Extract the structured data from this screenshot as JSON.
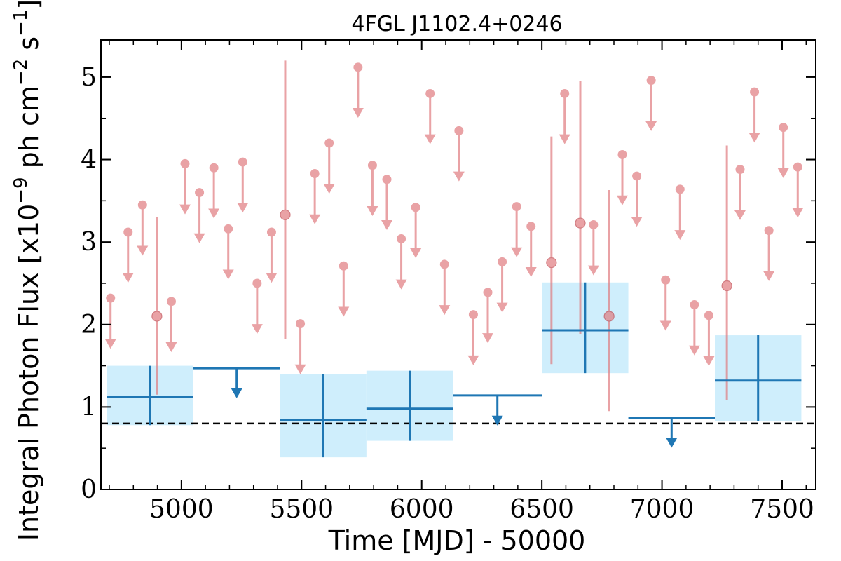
{
  "chart_data": {
    "type": "scatter",
    "title": "4FGL J1102.4+0246",
    "xlabel": "Time [MJD] - 50000",
    "ylabel": "Integral Photon Flux [x10",
    "ylabel_exp1": "−9",
    "ylabel_mid": " ph cm",
    "ylabel_exp2": "−2",
    "ylabel_mid2": " s",
    "ylabel_exp3": "−1",
    "ylabel_end": "]",
    "xlim": [
      4665,
      7640
    ],
    "ylim": [
      0,
      5.45
    ],
    "xticks": [
      5000,
      5500,
      6000,
      6500,
      7000,
      7500
    ],
    "yticks": [
      0,
      1,
      2,
      3,
      4,
      5
    ],
    "reference_line": {
      "y": 0.8,
      "style": "dashed",
      "color": "#000000"
    },
    "series": [
      {
        "marker": "circle-with-error",
        "color": "#e07b80",
        "points": [
          {
            "x": 4898,
            "y": 2.1,
            "ylo": 1.15,
            "yhi": 3.3
          },
          {
            "x": 5432,
            "y": 3.33,
            "ylo": 1.82,
            "yhi": 5.2
          },
          {
            "x": 6540,
            "y": 2.75,
            "ylo": 1.52,
            "yhi": 4.28
          },
          {
            "x": 6660,
            "y": 3.23,
            "ylo": 1.88,
            "yhi": 4.95
          },
          {
            "x": 6780,
            "y": 2.1,
            "ylo": 0.95,
            "yhi": 3.63
          },
          {
            "x": 7270,
            "y": 2.47,
            "ylo": 1.08,
            "yhi": 4.17
          }
        ]
      },
      {
        "marker": "upper-limit",
        "color": "#e07b80",
        "points": [
          {
            "x": 4705,
            "y": 2.32
          },
          {
            "x": 4778,
            "y": 3.12
          },
          {
            "x": 4838,
            "y": 3.45
          },
          {
            "x": 4958,
            "y": 2.28
          },
          {
            "x": 5015,
            "y": 3.95
          },
          {
            "x": 5075,
            "y": 3.6
          },
          {
            "x": 5135,
            "y": 3.9
          },
          {
            "x": 5195,
            "y": 3.16
          },
          {
            "x": 5255,
            "y": 3.97
          },
          {
            "x": 5315,
            "y": 2.5
          },
          {
            "x": 5375,
            "y": 3.12
          },
          {
            "x": 5495,
            "y": 2.01
          },
          {
            "x": 5555,
            "y": 3.83
          },
          {
            "x": 5615,
            "y": 4.2
          },
          {
            "x": 5675,
            "y": 2.71
          },
          {
            "x": 5735,
            "y": 5.12
          },
          {
            "x": 5795,
            "y": 3.93
          },
          {
            "x": 5855,
            "y": 3.76
          },
          {
            "x": 5915,
            "y": 3.04
          },
          {
            "x": 5975,
            "y": 3.42
          },
          {
            "x": 6035,
            "y": 4.8
          },
          {
            "x": 6095,
            "y": 2.73
          },
          {
            "x": 6155,
            "y": 4.35
          },
          {
            "x": 6215,
            "y": 2.12
          },
          {
            "x": 6275,
            "y": 2.39
          },
          {
            "x": 6335,
            "y": 2.76
          },
          {
            "x": 6395,
            "y": 3.43
          },
          {
            "x": 6455,
            "y": 3.19
          },
          {
            "x": 6595,
            "y": 4.8
          },
          {
            "x": 6715,
            "y": 3.21
          },
          {
            "x": 6835,
            "y": 4.06
          },
          {
            "x": 6895,
            "y": 3.8
          },
          {
            "x": 6955,
            "y": 4.96
          },
          {
            "x": 7015,
            "y": 2.54
          },
          {
            "x": 7075,
            "y": 3.64
          },
          {
            "x": 7135,
            "y": 2.24
          },
          {
            "x": 7195,
            "y": 2.11
          },
          {
            "x": 7325,
            "y": 3.88
          },
          {
            "x": 7385,
            "y": 4.82
          },
          {
            "x": 7445,
            "y": 3.14
          },
          {
            "x": 7505,
            "y": 4.39
          },
          {
            "x": 7565,
            "y": 3.91
          }
        ]
      },
      {
        "marker": "binned-with-error-box",
        "color": "#1f77b4",
        "box_color": "#cfeefc",
        "points": [
          {
            "x0": 4690,
            "x1": 5050,
            "y": 1.12,
            "xc": 4870,
            "ylo": 0.78,
            "yhi": 1.5
          },
          {
            "x0": 5410,
            "x1": 5770,
            "y": 0.84,
            "xc": 5590,
            "ylo": 0.39,
            "yhi": 1.4
          },
          {
            "x0": 5770,
            "x1": 6130,
            "y": 0.98,
            "xc": 5950,
            "ylo": 0.59,
            "yhi": 1.44
          },
          {
            "x0": 6500,
            "x1": 6860,
            "y": 1.93,
            "xc": 6680,
            "ylo": 1.41,
            "yhi": 2.51
          },
          {
            "x0": 7220,
            "x1": 7580,
            "y": 1.32,
            "xc": 7400,
            "ylo": 0.83,
            "yhi": 1.87
          }
        ]
      },
      {
        "marker": "binned-upper-limit",
        "color": "#1f77b4",
        "points": [
          {
            "x0": 5050,
            "x1": 5410,
            "y": 1.47,
            "xc": 5230
          },
          {
            "x0": 6130,
            "x1": 6500,
            "y": 1.14,
            "xc": 6315
          },
          {
            "x0": 6860,
            "x1": 7220,
            "y": 0.87,
            "xc": 7040
          }
        ]
      }
    ]
  }
}
